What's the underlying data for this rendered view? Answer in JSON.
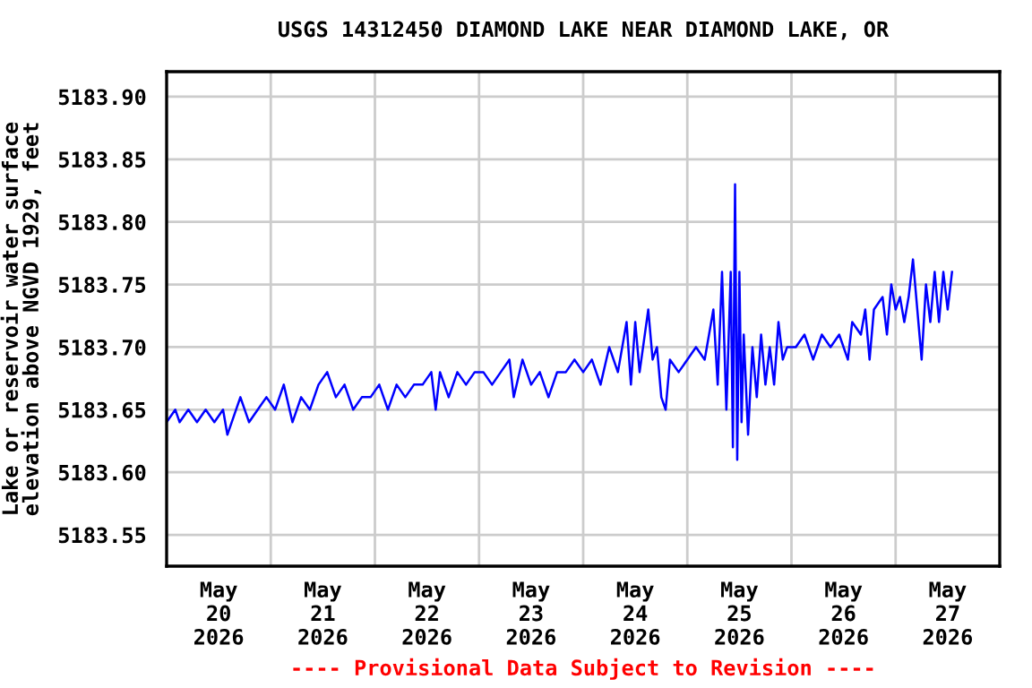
{
  "chart_data": {
    "type": "line",
    "title": "USGS 14312450 DIAMOND LAKE NEAR DIAMOND LAKE, OR",
    "ylabel": "Lake or reservoir water surface\nelevation above NGVD 1929, feet",
    "annotations": [
      "---- Provisional Data Subject to Revision ----"
    ],
    "xlim": [
      "2026-05-20T00:00",
      "2026-05-28T00:00"
    ],
    "xticks": [
      {
        "value": "2026-05-20T12:00",
        "label": "May\n20\n2026"
      },
      {
        "value": "2026-05-21T12:00",
        "label": "May\n21\n2026"
      },
      {
        "value": "2026-05-22T12:00",
        "label": "May\n22\n2026"
      },
      {
        "value": "2026-05-23T12:00",
        "label": "May\n23\n2026"
      },
      {
        "value": "2026-05-24T12:00",
        "label": "May\n24\n2026"
      },
      {
        "value": "2026-05-25T12:00",
        "label": "May\n25\n2026"
      },
      {
        "value": "2026-05-26T12:00",
        "label": "May\n26\n2026"
      },
      {
        "value": "2026-05-27T12:00",
        "label": "May\n27\n2026"
      },
      {
        "value": "2026-05-21T00:00",
        "label": null
      },
      {
        "value": "2026-05-22T00:00",
        "label": null
      },
      {
        "value": "2026-05-23T00:00",
        "label": null
      },
      {
        "value": "2026-05-24T00:00",
        "label": null
      },
      {
        "value": "2026-05-25T00:00",
        "label": null
      },
      {
        "value": "2026-05-26T00:00",
        "label": null
      },
      {
        "value": "2026-05-27T00:00",
        "label": null
      }
    ],
    "ylim": [
      5183.525,
      5183.92
    ],
    "yticks": [
      {
        "value": 5183.55,
        "label": "5183.55"
      },
      {
        "value": 5183.6,
        "label": "5183.60"
      },
      {
        "value": 5183.65,
        "label": "5183.65"
      },
      {
        "value": 5183.7,
        "label": "5183.70"
      },
      {
        "value": 5183.75,
        "label": "5183.75"
      },
      {
        "value": 5183.8,
        "label": "5183.80"
      },
      {
        "value": 5183.85,
        "label": "5183.85"
      },
      {
        "value": 5183.9,
        "label": "5183.90"
      }
    ],
    "grid": true,
    "series": [
      {
        "color": "#0000ff",
        "x": [
          "2026-05-20T00:00",
          "2026-05-20T02:00",
          "2026-05-20T03:00",
          "2026-05-20T05:00",
          "2026-05-20T07:00",
          "2026-05-20T09:00",
          "2026-05-20T11:00",
          "2026-05-20T13:00",
          "2026-05-20T14:00",
          "2026-05-20T15:00",
          "2026-05-20T17:00",
          "2026-05-20T19:00",
          "2026-05-20T21:00",
          "2026-05-20T23:00",
          "2026-05-21T01:00",
          "2026-05-21T03:00",
          "2026-05-21T05:00",
          "2026-05-21T07:00",
          "2026-05-21T09:00",
          "2026-05-21T11:00",
          "2026-05-21T13:00",
          "2026-05-21T15:00",
          "2026-05-21T17:00",
          "2026-05-21T19:00",
          "2026-05-21T21:00",
          "2026-05-21T23:00",
          "2026-05-22T01:00",
          "2026-05-22T03:00",
          "2026-05-22T05:00",
          "2026-05-22T07:00",
          "2026-05-22T09:00",
          "2026-05-22T11:00",
          "2026-05-22T13:00",
          "2026-05-22T14:00",
          "2026-05-22T15:00",
          "2026-05-22T17:00",
          "2026-05-22T19:00",
          "2026-05-22T21:00",
          "2026-05-22T23:00",
          "2026-05-23T01:00",
          "2026-05-23T03:00",
          "2026-05-23T05:00",
          "2026-05-23T07:00",
          "2026-05-23T08:00",
          "2026-05-23T10:00",
          "2026-05-23T12:00",
          "2026-05-23T14:00",
          "2026-05-23T16:00",
          "2026-05-23T18:00",
          "2026-05-23T20:00",
          "2026-05-23T22:00",
          "2026-05-24T00:00",
          "2026-05-24T02:00",
          "2026-05-24T04:00",
          "2026-05-24T06:00",
          "2026-05-24T08:00",
          "2026-05-24T10:00",
          "2026-05-24T11:00",
          "2026-05-24T12:00",
          "2026-05-24T13:00",
          "2026-05-24T15:00",
          "2026-05-24T16:00",
          "2026-05-24T17:00",
          "2026-05-24T18:00",
          "2026-05-24T19:00",
          "2026-05-24T20:00",
          "2026-05-24T22:00",
          "2026-05-25T00:00",
          "2026-05-25T02:00",
          "2026-05-25T04:00",
          "2026-05-25T06:00",
          "2026-05-25T07:00",
          "2026-05-25T08:00",
          "2026-05-25T09:00",
          "2026-05-25T10:00",
          "2026-05-25T10:30",
          "2026-05-25T11:00",
          "2026-05-25T11:30",
          "2026-05-25T12:00",
          "2026-05-25T12:30",
          "2026-05-25T13:00",
          "2026-05-25T14:00",
          "2026-05-25T15:00",
          "2026-05-25T16:00",
          "2026-05-25T17:00",
          "2026-05-25T18:00",
          "2026-05-25T19:00",
          "2026-05-25T20:00",
          "2026-05-25T21:00",
          "2026-05-25T22:00",
          "2026-05-25T23:00",
          "2026-05-26T01:00",
          "2026-05-26T03:00",
          "2026-05-26T05:00",
          "2026-05-26T07:00",
          "2026-05-26T09:00",
          "2026-05-26T11:00",
          "2026-05-26T13:00",
          "2026-05-26T14:00",
          "2026-05-26T16:00",
          "2026-05-26T17:00",
          "2026-05-26T18:00",
          "2026-05-26T19:00",
          "2026-05-26T21:00",
          "2026-05-26T22:00",
          "2026-05-26T23:00",
          "2026-05-27T00:00",
          "2026-05-27T01:00",
          "2026-05-27T02:00",
          "2026-05-27T03:00",
          "2026-05-27T04:00",
          "2026-05-27T05:00",
          "2026-05-27T06:00",
          "2026-05-27T07:00",
          "2026-05-27T08:00",
          "2026-05-27T09:00",
          "2026-05-27T10:00",
          "2026-05-27T11:00",
          "2026-05-27T12:00",
          "2026-05-27T13:00"
        ],
        "values": [
          5183.64,
          5183.65,
          5183.64,
          5183.65,
          5183.64,
          5183.65,
          5183.64,
          5183.65,
          5183.63,
          5183.64,
          5183.66,
          5183.64,
          5183.65,
          5183.66,
          5183.65,
          5183.67,
          5183.64,
          5183.66,
          5183.65,
          5183.67,
          5183.68,
          5183.66,
          5183.67,
          5183.65,
          5183.66,
          5183.66,
          5183.67,
          5183.65,
          5183.67,
          5183.66,
          5183.67,
          5183.67,
          5183.68,
          5183.65,
          5183.68,
          5183.66,
          5183.68,
          5183.67,
          5183.68,
          5183.68,
          5183.67,
          5183.68,
          5183.69,
          5183.66,
          5183.69,
          5183.67,
          5183.68,
          5183.66,
          5183.68,
          5183.68,
          5183.69,
          5183.68,
          5183.69,
          5183.67,
          5183.7,
          5183.68,
          5183.72,
          5183.67,
          5183.72,
          5183.68,
          5183.73,
          5183.69,
          5183.7,
          5183.66,
          5183.65,
          5183.69,
          5183.68,
          5183.69,
          5183.7,
          5183.69,
          5183.73,
          5183.67,
          5183.76,
          5183.65,
          5183.76,
          5183.62,
          5183.83,
          5183.61,
          5183.76,
          5183.64,
          5183.71,
          5183.63,
          5183.7,
          5183.66,
          5183.71,
          5183.67,
          5183.7,
          5183.67,
          5183.72,
          5183.69,
          5183.7,
          5183.7,
          5183.71,
          5183.69,
          5183.71,
          5183.7,
          5183.71,
          5183.69,
          5183.72,
          5183.71,
          5183.73,
          5183.69,
          5183.73,
          5183.74,
          5183.71,
          5183.75,
          5183.73,
          5183.74,
          5183.72,
          5183.74,
          5183.77,
          5183.73,
          5183.69,
          5183.75,
          5183.72,
          5183.76,
          5183.72,
          5183.76,
          5183.73,
          5183.76
        ]
      }
    ]
  }
}
